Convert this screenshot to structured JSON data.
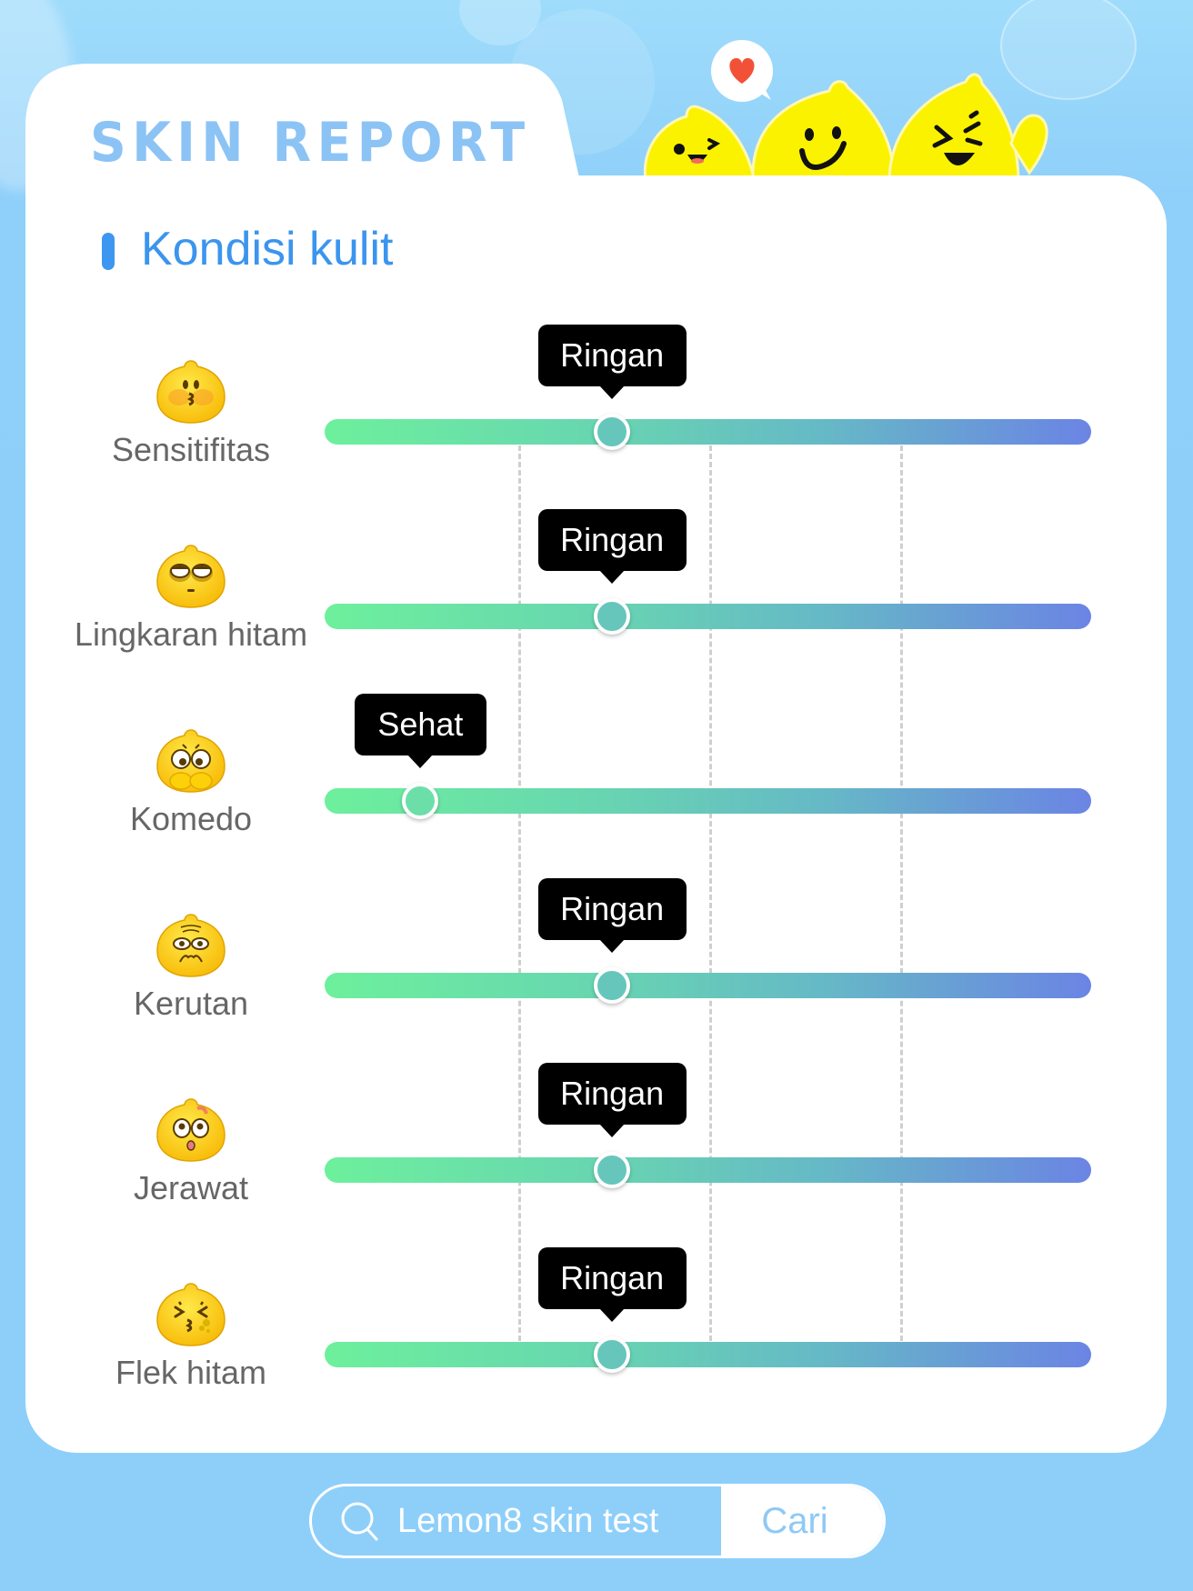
{
  "header": {
    "title": "SKIN REPORT",
    "mascot_icons": [
      "wink-lemon-mascot",
      "smile-lemon-mascot",
      "laughing-waving-lemon-mascot",
      "heart-speech-bubble"
    ]
  },
  "section": {
    "title": "Kondisi kulit",
    "accent_color": "#3d97f0"
  },
  "scale": {
    "track_gradient": [
      "#6df09c",
      "#66b9c6",
      "#6b84e4"
    ],
    "tick_count": 3
  },
  "conditions": [
    {
      "label": "Sensitifitas",
      "icon": "kissing-blush-emoji",
      "level": "Ringan",
      "position_pct": 37.5
    },
    {
      "label": "Lingkaran hitam",
      "icon": "dark-circles-emoji",
      "level": "Ringan",
      "position_pct": 37.5
    },
    {
      "label": "Komedo",
      "icon": "worried-pinching-nose-emoji",
      "level": "Sehat",
      "position_pct": 12.5
    },
    {
      "label": "Kerutan",
      "icon": "wrinkled-forehead-emoji",
      "level": "Ringan",
      "position_pct": 37.5
    },
    {
      "label": "Jerawat",
      "icon": "surprised-pimple-emoji",
      "level": "Ringan",
      "position_pct": 37.5
    },
    {
      "label": "Flek hitam",
      "icon": "squinting-spots-emoji",
      "level": "Ringan",
      "position_pct": 37.5
    }
  ],
  "search": {
    "query": "Lemon8 skin test",
    "button_label": "Cari"
  }
}
